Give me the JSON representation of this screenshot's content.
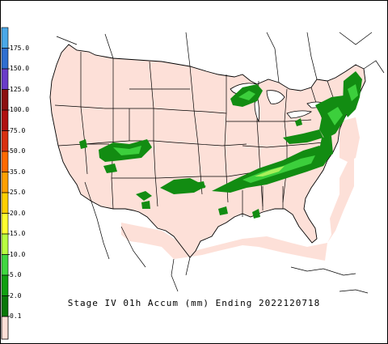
{
  "map": {
    "title": "Stage IV 01h Accum (mm) Ending 2022120718",
    "background_color": "#ffffff",
    "land_color": "#fde0d8",
    "coverage_color": "#fde0d8",
    "boundary_color": "#000000"
  },
  "legend": {
    "items": [
      {
        "label": "175.0",
        "color": "#4aa8e8"
      },
      {
        "label": "150.0",
        "color": "#2e6fd0"
      },
      {
        "label": "125.0",
        "color": "#6a3cc8"
      },
      {
        "label": "100.0",
        "color": "#8c1010"
      },
      {
        "label": "75.0",
        "color": "#b01010"
      },
      {
        "label": "50.0",
        "color": "#d83010"
      },
      {
        "label": "35.0",
        "color": "#ff6a00"
      },
      {
        "label": "25.0",
        "color": "#ffa000"
      },
      {
        "label": "20.0",
        "color": "#ffd000"
      },
      {
        "label": "15.0",
        "color": "#ffff30"
      },
      {
        "label": "10.0",
        "color": "#b8ff40"
      },
      {
        "label": "5.0",
        "color": "#40d840"
      },
      {
        "label": "2.0",
        "color": "#10a010"
      },
      {
        "label": "0.1",
        "color": "#087808"
      }
    ],
    "base_color": "#fde0d8"
  },
  "precip": {
    "light": "#128c12",
    "medium": "#3ccf3c",
    "heavy": "#a8f05a"
  }
}
